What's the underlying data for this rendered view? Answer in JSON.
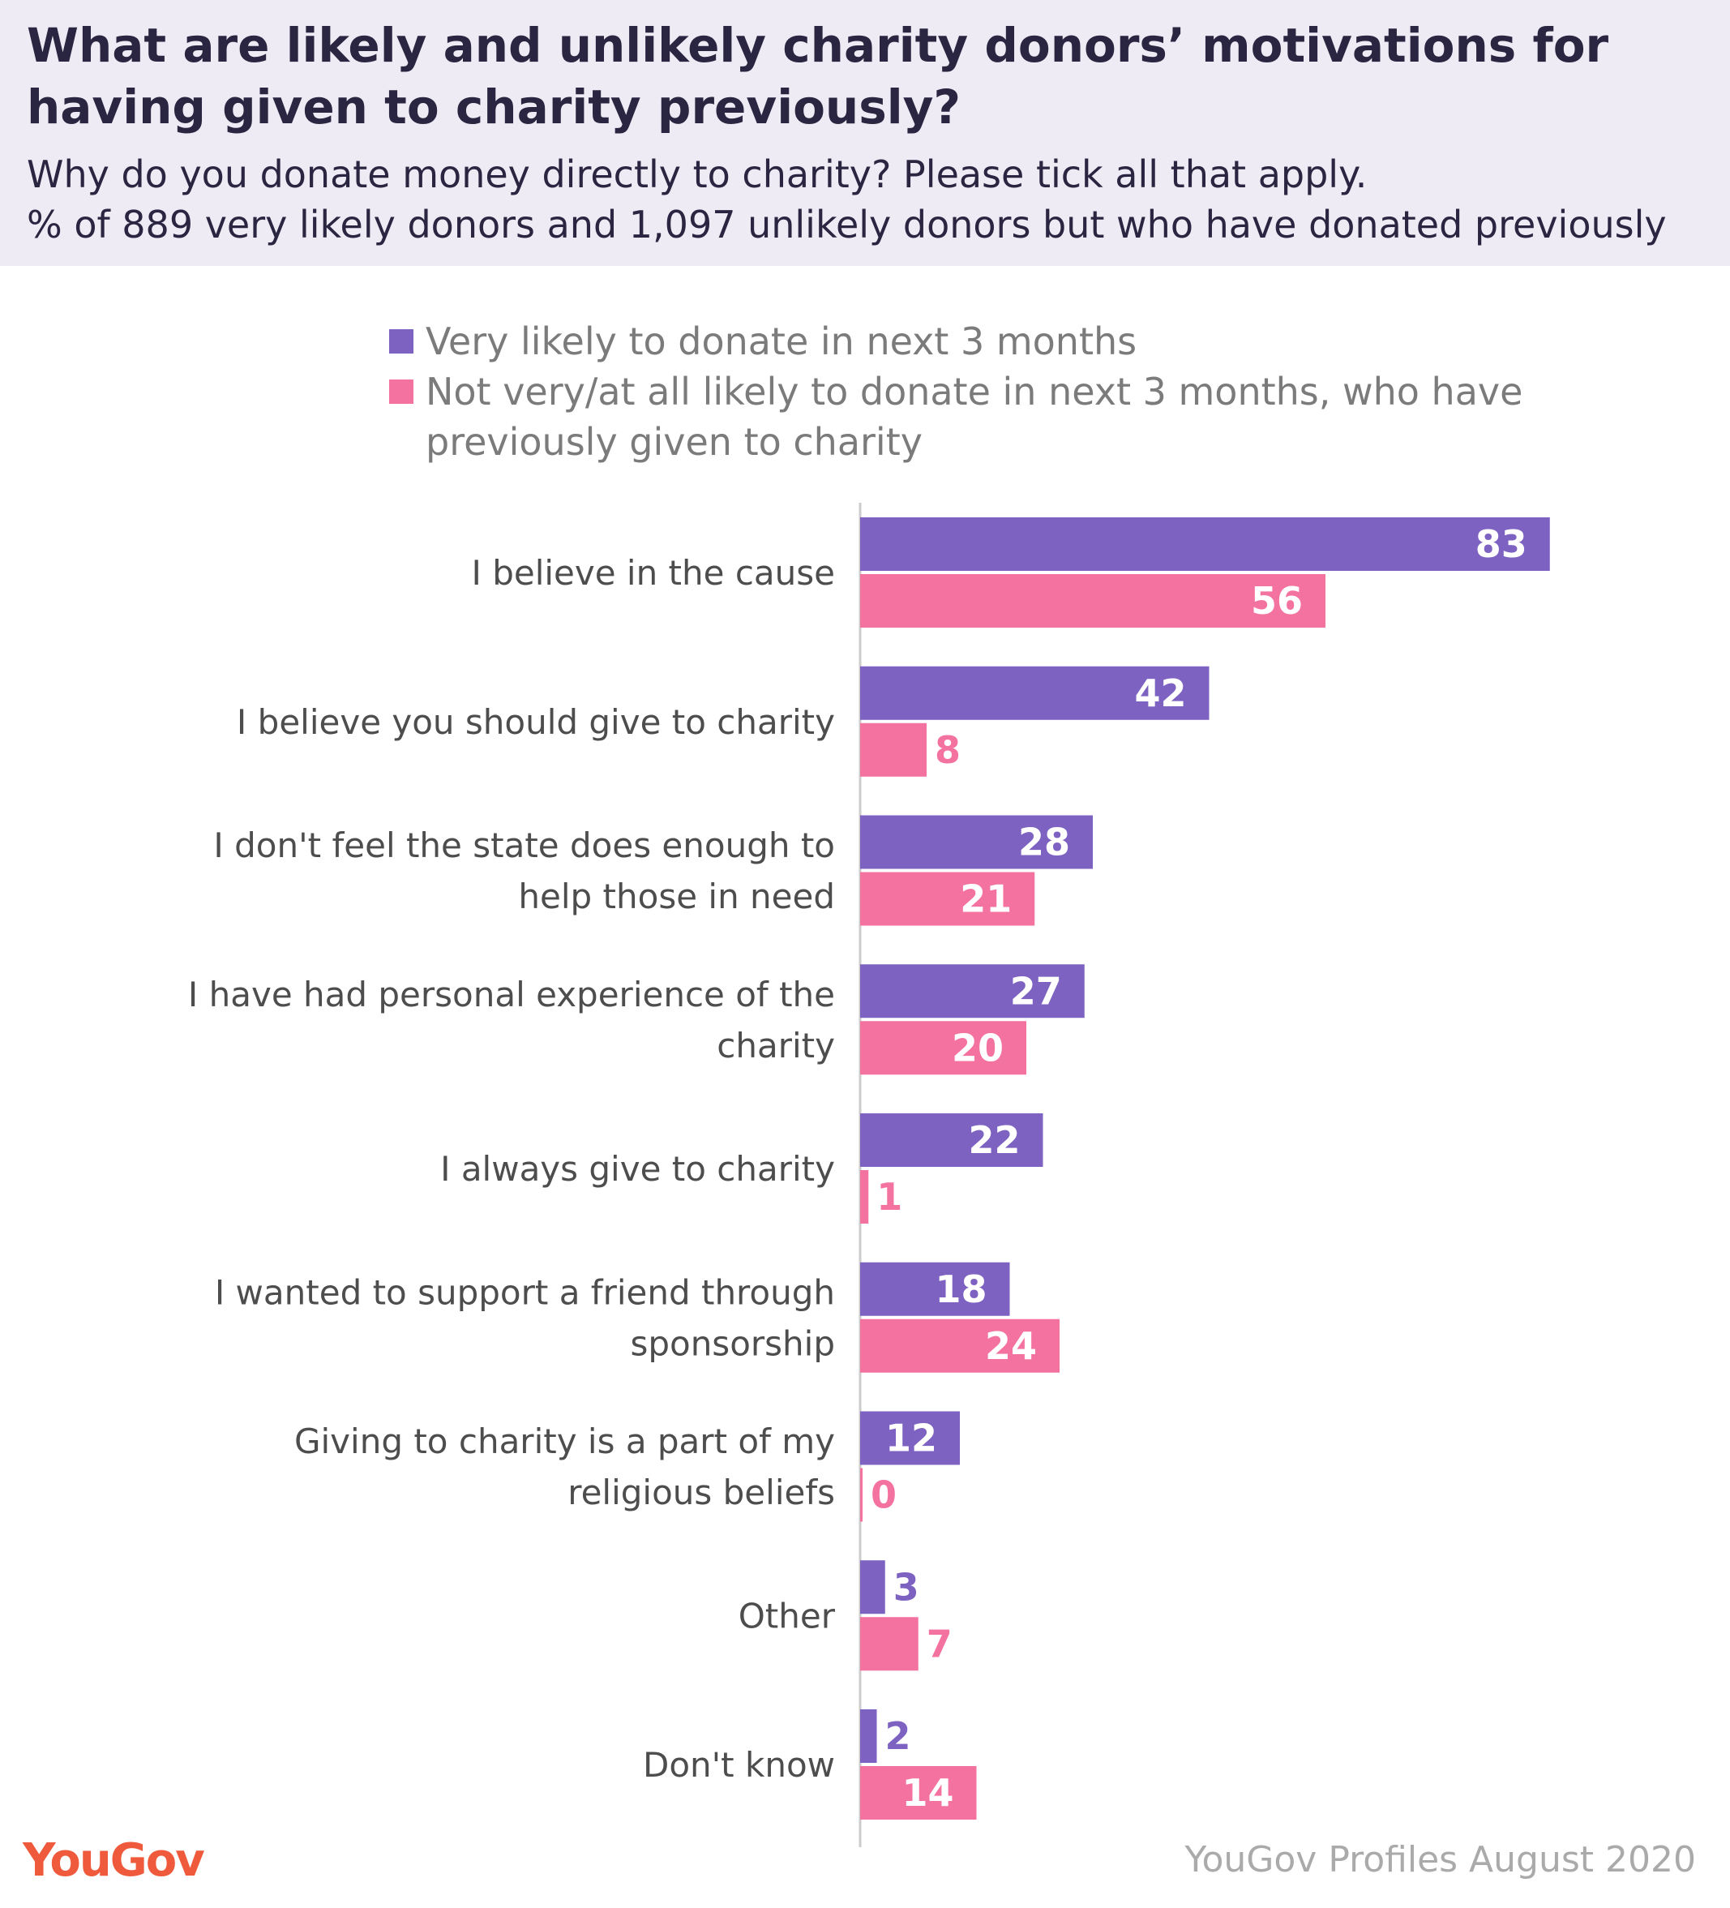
{
  "header": {
    "title": "What are likely and unlikely charity donors’ motivations for having given to charity previously?",
    "subtitle_question": "Why do you donate money directly to charity? Please tick all that apply.",
    "subtitle_base": "% of 889 very likely donors and 1,097 unlikely donors but who have donated previously"
  },
  "legend": [
    {
      "label": "Very likely to donate in next 3 months",
      "color": "#7d62c2"
    },
    {
      "label": "Not very/at all likely to donate in next 3 months, who have previously given to charity",
      "color": "#f4729f"
    }
  ],
  "chart_data": {
    "type": "bar",
    "orientation": "horizontal",
    "title": "What are likely and unlikely charity donors’ motivations for having given to charity previously?",
    "xlabel": "",
    "ylabel": "",
    "xlim": [
      0,
      100
    ],
    "categories": [
      [
        "I believe in the cause"
      ],
      [
        "I believe you should give to charity"
      ],
      [
        "I don't feel the state does enough to",
        "help those in need"
      ],
      [
        "I have had personal experience of the",
        "charity"
      ],
      [
        "I always give to charity"
      ],
      [
        "I wanted to support a friend through",
        "sponsorship"
      ],
      [
        "Giving to charity is a part of my",
        "religious beliefs"
      ],
      [
        "Other"
      ],
      [
        "Don't know"
      ]
    ],
    "series": [
      {
        "name": "Very likely to donate in next 3 months",
        "color": "#7d62c2",
        "values": [
          83,
          42,
          28,
          27,
          22,
          18,
          12,
          3,
          2
        ]
      },
      {
        "name": "Not very/at all likely to donate in next 3 months, who have previously given to charity",
        "color": "#f4729f",
        "values": [
          56,
          8,
          21,
          20,
          1,
          24,
          0,
          7,
          14
        ]
      }
    ]
  },
  "footer": {
    "logo_text": "YouGov",
    "source": "YouGov Profiles August 2020"
  }
}
